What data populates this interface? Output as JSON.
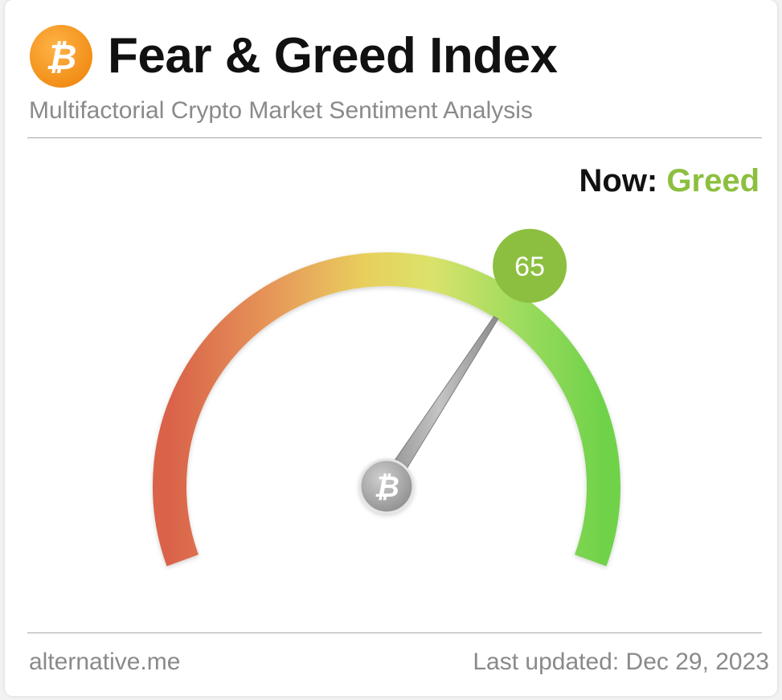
{
  "header": {
    "title": "Fear & Greed Index",
    "subtitle": "Multifactorial Crypto Market Sentiment Analysis",
    "logo_icon": "bitcoin-icon"
  },
  "status": {
    "now_label": "Now:",
    "classification": "Greed",
    "value": "65",
    "value_numeric": 65,
    "scale_min": 0,
    "scale_max": 100
  },
  "footer": {
    "source": "alternative.me",
    "last_updated": "Last updated: Dec 29, 2023"
  },
  "colors": {
    "brand_orange": "#f7931a",
    "greed_green": "#8cbf3f",
    "fear_red": "#d9624a",
    "neutral_yellow": "#e8d05a",
    "extreme_green": "#6fd24a"
  }
}
